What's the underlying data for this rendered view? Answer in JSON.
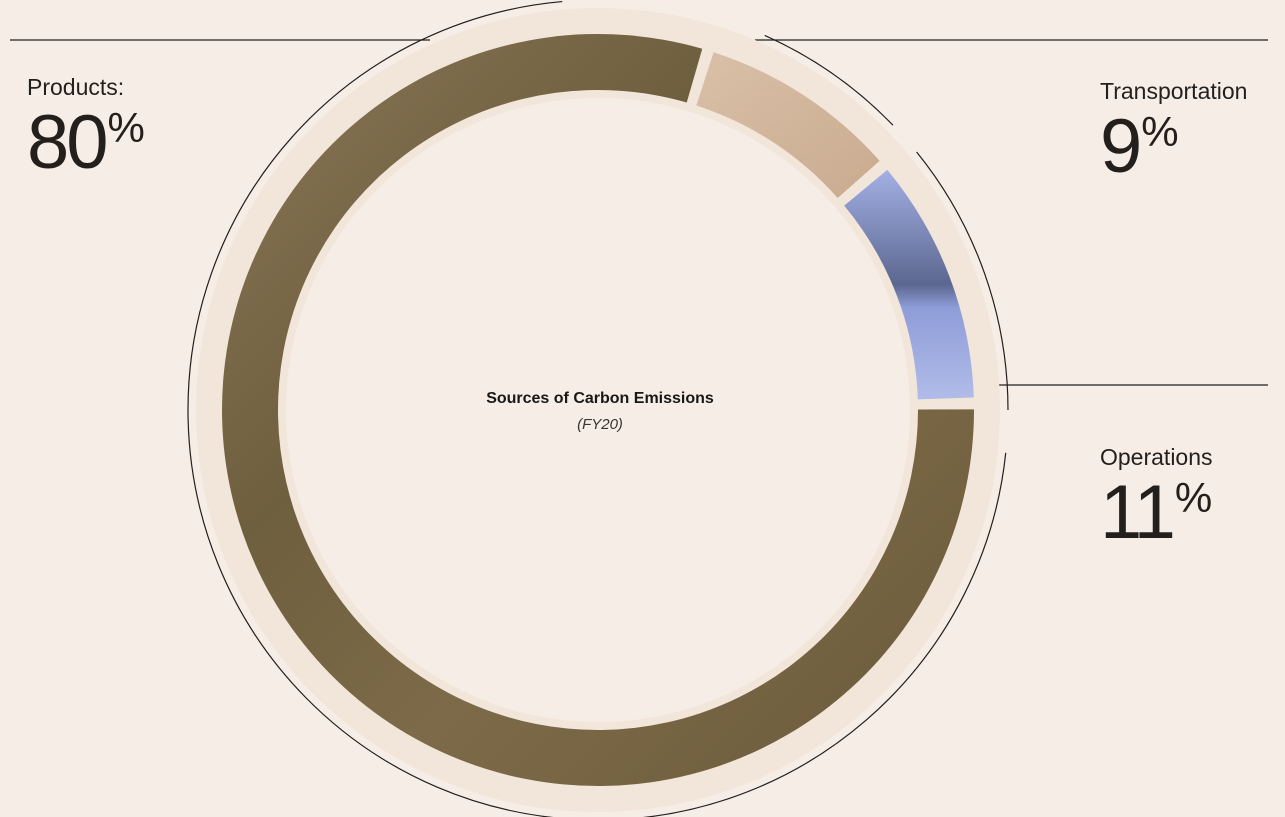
{
  "chart_data": {
    "type": "pie",
    "title": "Sources of Carbon Emissions",
    "subtitle": "(FY20)",
    "categories": [
      "Products:",
      "Transportation",
      "Operations"
    ],
    "values": [
      80,
      9,
      11
    ],
    "unit": "%",
    "slices": [
      {
        "label": "Products:",
        "value": 80,
        "color": "#7a6848"
      },
      {
        "label": "Transportation",
        "value": 9,
        "color": "#d4b9a0"
      },
      {
        "label": "Operations",
        "value": 11,
        "color": "#98a6dc"
      }
    ]
  },
  "callouts": {
    "products": {
      "label": "Products:",
      "value": "80",
      "unit": "%"
    },
    "transportation": {
      "label": "Transportation",
      "value": "9",
      "unit": "%"
    },
    "operations": {
      "label": "Operations",
      "value": "11",
      "unit": "%"
    }
  },
  "colors": {
    "background": "#f6ede6",
    "gap_ring": "#f2e6da",
    "outline": "#231f1c"
  }
}
